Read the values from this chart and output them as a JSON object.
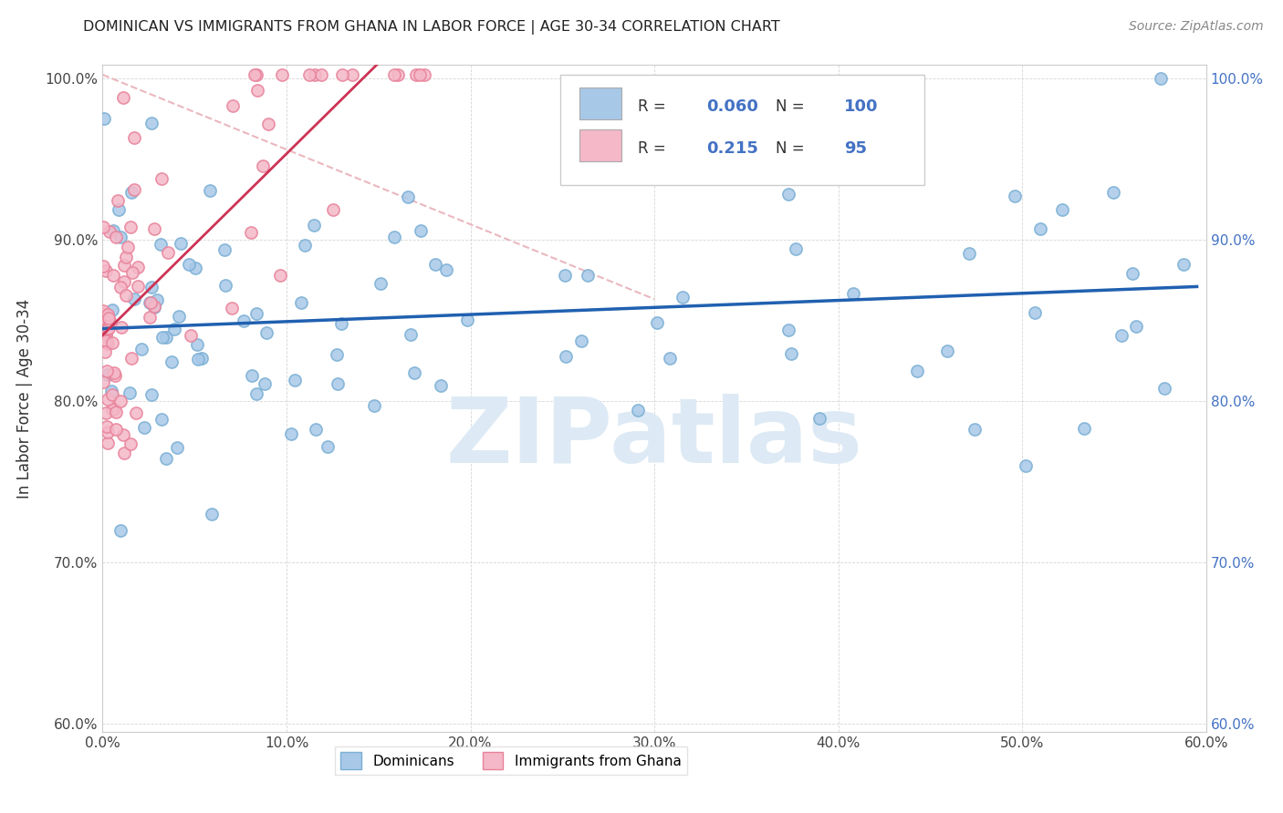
{
  "title": "DOMINICAN VS IMMIGRANTS FROM GHANA IN LABOR FORCE | AGE 30-34 CORRELATION CHART",
  "source": "Source: ZipAtlas.com",
  "ylabel": "In Labor Force | Age 30-34",
  "xlim": [
    0.0,
    0.6
  ],
  "ylim": [
    0.595,
    1.008
  ],
  "xtick_labels": [
    "0.0%",
    "10.0%",
    "20.0%",
    "30.0%",
    "40.0%",
    "50.0%",
    "60.0%"
  ],
  "xtick_vals": [
    0.0,
    0.1,
    0.2,
    0.3,
    0.4,
    0.5,
    0.6
  ],
  "ytick_labels": [
    "60.0%",
    "70.0%",
    "80.0%",
    "90.0%",
    "100.0%"
  ],
  "ytick_vals": [
    0.6,
    0.7,
    0.8,
    0.9,
    1.0
  ],
  "blue_color": "#a8c8e8",
  "blue_edge_color": "#7aafd4",
  "pink_color": "#f4b8c8",
  "pink_edge_color": "#e8829a",
  "blue_line_color": "#2060b0",
  "pink_line_color": "#cc3355",
  "diag_color": "#e8b0b8",
  "legend_blue_label": "Dominicans",
  "legend_pink_label": "Immigrants from Ghana",
  "R_blue": "0.060",
  "N_blue": "100",
  "R_pink": "0.215",
  "N_pink": "95",
  "watermark": "ZIPatlas",
  "watermark_color": "#ddeaf5"
}
